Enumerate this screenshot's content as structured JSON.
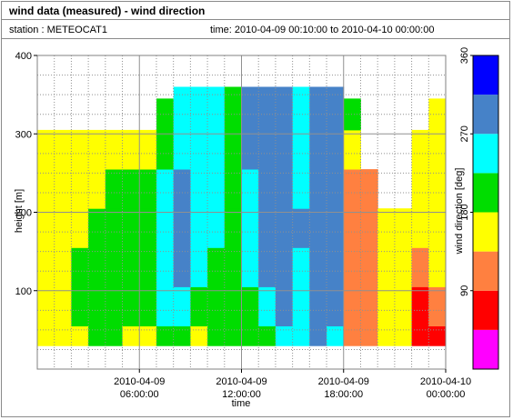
{
  "window": {
    "title": "wind data (measured) - wind direction",
    "station_label": "station : METEOCAT1",
    "time_label": "time: 2010-04-09 00:10:00 to 2010-04-10 00:00:00"
  },
  "chart_data": {
    "type": "heatmap",
    "xlabel": "time",
    "ylabel": "height [m]",
    "ylim": [
      0,
      400
    ],
    "xlim": [
      "2010-04-09 00:00:00",
      "2010-04-10 00:00:00"
    ],
    "x_ticks": [
      {
        "at": "2010-04-09 06:00:00",
        "date": "2010-04-09",
        "clock": "06:00:00"
      },
      {
        "at": "2010-04-09 12:00:00",
        "date": "2010-04-09",
        "clock": "12:00:00"
      },
      {
        "at": "2010-04-09 18:00:00",
        "date": "2010-04-09",
        "clock": "18:00:00"
      },
      {
        "at": "2010-04-10 00:00:00",
        "date": "2010-04-10",
        "clock": "00:00:00"
      }
    ],
    "y_ticks": [
      100,
      200,
      300,
      400
    ],
    "grid": true,
    "colorbar": {
      "label": "wind direction [deg]",
      "range": [
        0,
        360
      ],
      "ticks": [
        90,
        180,
        270,
        360
      ],
      "bins": [
        {
          "from": 0,
          "to": 45,
          "color": "#ff00ff"
        },
        {
          "from": 45,
          "to": 90,
          "color": "#ff0000"
        },
        {
          "from": 90,
          "to": 135,
          "color": "#ff8040"
        },
        {
          "from": 135,
          "to": 180,
          "color": "#ffff00"
        },
        {
          "from": 180,
          "to": 225,
          "color": "#00dd00"
        },
        {
          "from": 225,
          "to": 270,
          "color": "#00ffff"
        },
        {
          "from": 270,
          "to": 315,
          "color": "#4682c8"
        },
        {
          "from": 315,
          "to": 360,
          "color": "#0000ff"
        }
      ]
    },
    "heights": [
      30,
      80,
      130,
      180,
      230,
      280,
      330,
      360
    ],
    "profiles": [
      {
        "hour": 0.0,
        "dirs": [
          160,
          160,
          160,
          160,
          160,
          165,
          null,
          null
        ]
      },
      {
        "hour": 1.0,
        "dirs": [
          160,
          165,
          160,
          160,
          160,
          160,
          null,
          null
        ]
      },
      {
        "hour": 2.0,
        "dirs": [
          170,
          190,
          185,
          170,
          160,
          160,
          null,
          null
        ]
      },
      {
        "hour": 3.0,
        "dirs": [
          200,
          205,
          200,
          190,
          170,
          160,
          null,
          null
        ]
      },
      {
        "hour": 4.0,
        "dirs": [
          200,
          210,
          200,
          200,
          180,
          170,
          null,
          null
        ]
      },
      {
        "hour": 5.0,
        "dirs": [
          160,
          200,
          210,
          200,
          180,
          170,
          null,
          null
        ]
      },
      {
        "hour": 6.0,
        "dirs": [
          170,
          210,
          200,
          200,
          180,
          170,
          null,
          null
        ]
      },
      {
        "hour": 7.0,
        "dirs": [
          210,
          240,
          250,
          260,
          250,
          200,
          200,
          null
        ]
      },
      {
        "hour": 8.0,
        "dirs": [
          200,
          240,
          270,
          280,
          280,
          260,
          230,
          230
        ]
      },
      {
        "hour": 9.0,
        "dirs": [
          170,
          200,
          230,
          240,
          260,
          260,
          240,
          230
        ]
      },
      {
        "hour": 10.0,
        "dirs": [
          200,
          210,
          220,
          230,
          240,
          250,
          240,
          240
        ]
      },
      {
        "hour": 11.0,
        "dirs": [
          200,
          210,
          210,
          210,
          220,
          220,
          220,
          220
        ]
      },
      {
        "hour": 12.0,
        "dirs": [
          200,
          220,
          230,
          240,
          260,
          280,
          290,
          290
        ]
      },
      {
        "hour": 13.0,
        "dirs": [
          210,
          240,
          280,
          290,
          290,
          290,
          290,
          290
        ]
      },
      {
        "hour": 14.0,
        "dirs": [
          240,
          280,
          290,
          290,
          290,
          290,
          290,
          290
        ]
      },
      {
        "hour": 15.0,
        "dirs": [
          230,
          250,
          260,
          270,
          260,
          260,
          260,
          260
        ]
      },
      {
        "hour": 16.0,
        "dirs": [
          280,
          290,
          290,
          290,
          280,
          270,
          270,
          270
        ]
      },
      {
        "hour": 17.0,
        "dirs": [
          250,
          270,
          280,
          280,
          280,
          280,
          290,
          290
        ]
      },
      {
        "hour": 18.0,
        "dirs": [
          120,
          120,
          120,
          120,
          120,
          150,
          200,
          null
        ]
      },
      {
        "hour": 19.0,
        "dirs": [
          120,
          120,
          120,
          120,
          120,
          null,
          null,
          null
        ]
      },
      {
        "hour": 20.0,
        "dirs": [
          160,
          160,
          160,
          160,
          null,
          null,
          null,
          null
        ]
      },
      {
        "hour": 21.0,
        "dirs": [
          160,
          160,
          160,
          160,
          null,
          null,
          null,
          null
        ]
      },
      {
        "hour": 22.0,
        "dirs": [
          80,
          80,
          120,
          160,
          160,
          160,
          null,
          null
        ]
      },
      {
        "hour": 23.0,
        "dirs": [
          80,
          120,
          160,
          160,
          160,
          160,
          165,
          null
        ]
      }
    ]
  }
}
